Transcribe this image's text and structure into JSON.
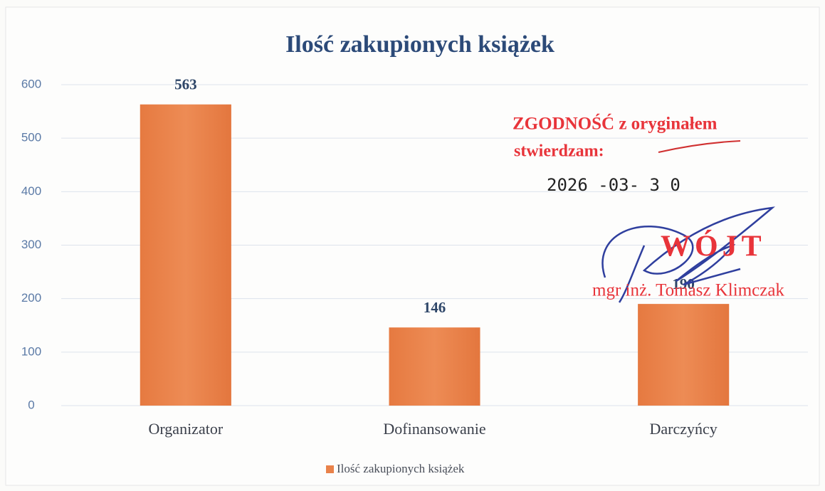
{
  "chart_data": {
    "type": "bar",
    "title": "Ilość zakupionych książek",
    "categories": [
      "Organizator",
      "Dofinansowanie",
      "Darczyńcy"
    ],
    "series": [
      {
        "name": "Ilość zakupionych książek",
        "color": "#e9824a",
        "values": [
          563,
          146,
          190
        ]
      }
    ],
    "ylim": [
      0,
      600
    ],
    "yticks": [
      0,
      100,
      200,
      300,
      400,
      500,
      600
    ],
    "grid": true,
    "legend": "bottom",
    "annotations": [
      "ZGODNOŚĆ z oryginałem",
      "stwierdzam:",
      "2026 -03- 3 0",
      "WÓJT",
      "mgr inż. Tomasz Klimczak"
    ]
  }
}
